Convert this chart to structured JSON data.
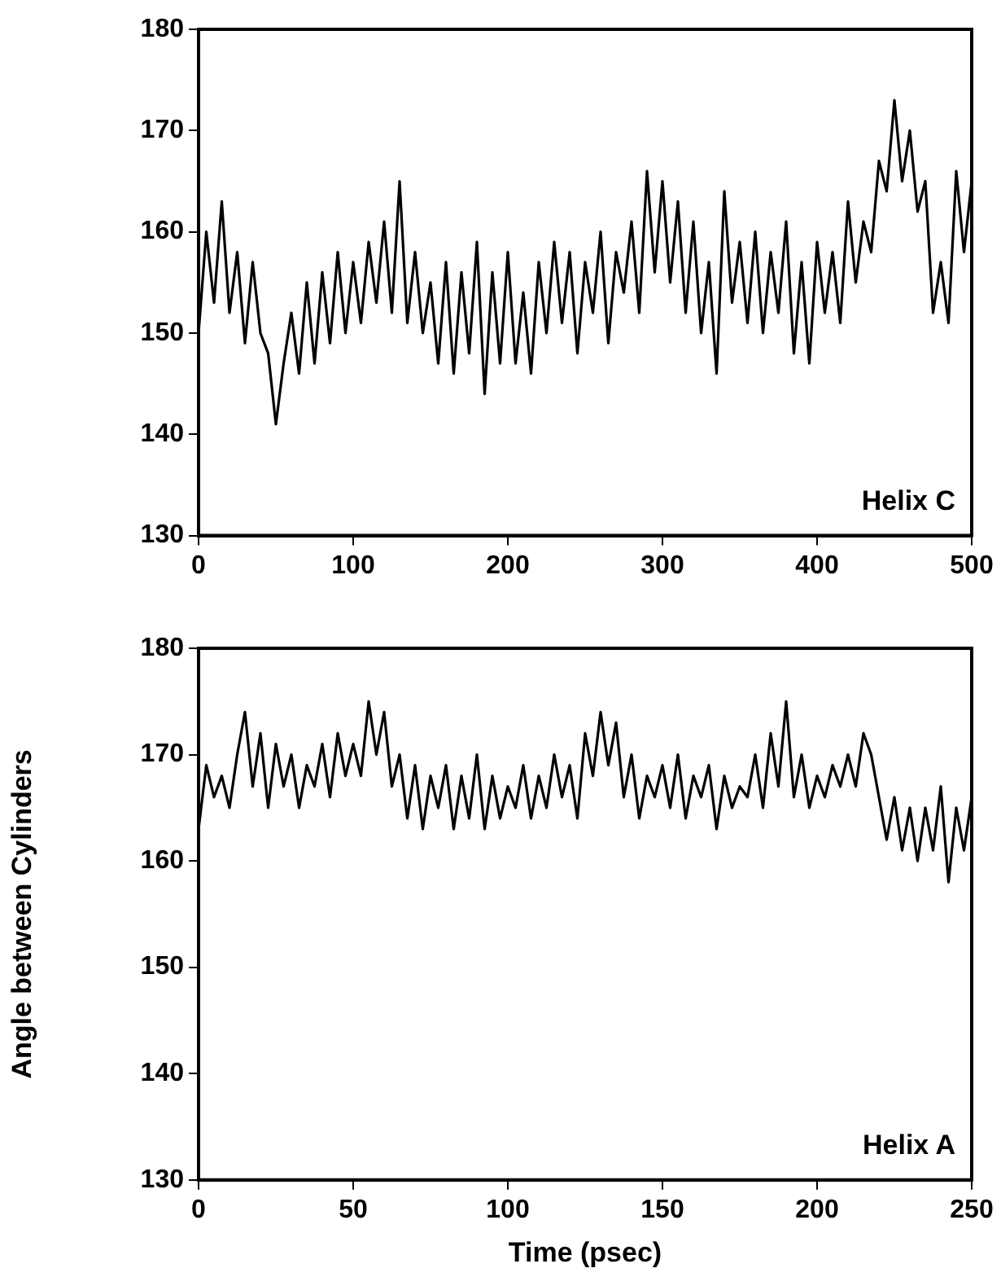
{
  "chart_data": [
    {
      "type": "line",
      "annotations": [
        "Helix C"
      ],
      "xlim": [
        0,
        500
      ],
      "xticks": [
        0,
        100,
        200,
        300,
        400,
        500
      ],
      "ylim": [
        130,
        180
      ],
      "yticks": [
        130,
        140,
        150,
        160,
        170,
        180
      ],
      "grid": false,
      "legend": false,
      "marker": "none",
      "x": [
        0,
        5,
        10,
        15,
        20,
        25,
        30,
        35,
        40,
        45,
        50,
        55,
        60,
        65,
        70,
        75,
        80,
        85,
        90,
        95,
        100,
        105,
        110,
        115,
        120,
        125,
        130,
        135,
        140,
        145,
        150,
        155,
        160,
        165,
        170,
        175,
        180,
        185,
        190,
        195,
        200,
        205,
        210,
        215,
        220,
        225,
        230,
        235,
        240,
        245,
        250,
        255,
        260,
        265,
        270,
        275,
        280,
        285,
        290,
        295,
        300,
        305,
        310,
        315,
        320,
        325,
        330,
        335,
        340,
        345,
        350,
        355,
        360,
        365,
        370,
        375,
        380,
        385,
        390,
        395,
        400,
        405,
        410,
        415,
        420,
        425,
        430,
        435,
        440,
        445,
        450,
        455,
        460,
        465,
        470,
        475,
        480,
        485,
        490,
        495,
        500
      ],
      "series": [
        {
          "color": "#000000",
          "values": [
            150,
            160,
            153,
            163,
            152,
            158,
            149,
            157,
            150,
            148,
            141,
            147,
            152,
            146,
            155,
            147,
            156,
            149,
            158,
            150,
            157,
            151,
            159,
            153,
            161,
            152,
            165,
            151,
            158,
            150,
            155,
            147,
            157,
            146,
            156,
            148,
            159,
            144,
            156,
            147,
            158,
            147,
            154,
            146,
            157,
            150,
            159,
            151,
            158,
            148,
            157,
            152,
            160,
            149,
            158,
            154,
            161,
            152,
            166,
            156,
            165,
            155,
            163,
            152,
            161,
            150,
            157,
            146,
            164,
            153,
            159,
            151,
            160,
            150,
            158,
            152,
            161,
            148,
            157,
            147,
            159,
            152,
            158,
            151,
            163,
            155,
            161,
            158,
            167,
            164,
            173,
            165,
            170,
            162,
            165,
            152,
            157,
            151,
            166,
            158,
            165
          ]
        }
      ]
    },
    {
      "type": "line",
      "xlabel": "Time (psec)",
      "ylabel": "Angle between Cylinders",
      "annotations": [
        "Helix A"
      ],
      "xlim": [
        0,
        250
      ],
      "xticks": [
        0,
        50,
        100,
        150,
        200,
        250
      ],
      "ylim": [
        130,
        180
      ],
      "yticks": [
        130,
        140,
        150,
        160,
        170,
        180
      ],
      "grid": false,
      "legend": false,
      "marker": "none",
      "x": [
        0,
        2.5,
        5,
        7.5,
        10,
        12.5,
        15,
        17.5,
        20,
        22.5,
        25,
        27.5,
        30,
        32.5,
        35,
        37.5,
        40,
        42.5,
        45,
        47.5,
        50,
        52.5,
        55,
        57.5,
        60,
        62.5,
        65,
        67.5,
        70,
        72.5,
        75,
        77.5,
        80,
        82.5,
        85,
        87.5,
        90,
        92.5,
        95,
        97.5,
        100,
        102.5,
        105,
        107.5,
        110,
        112.5,
        115,
        117.5,
        120,
        122.5,
        125,
        127.5,
        130,
        132.5,
        135,
        137.5,
        140,
        142.5,
        145,
        147.5,
        150,
        152.5,
        155,
        157.5,
        160,
        162.5,
        165,
        167.5,
        170,
        172.5,
        175,
        177.5,
        180,
        182.5,
        185,
        187.5,
        190,
        192.5,
        195,
        197.5,
        200,
        202.5,
        205,
        207.5,
        210,
        212.5,
        215,
        217.5,
        220,
        222.5,
        225,
        227.5,
        230,
        232.5,
        235,
        237.5,
        240,
        242.5,
        245,
        247.5,
        250
      ],
      "series": [
        {
          "color": "#000000",
          "values": [
            163,
            169,
            166,
            168,
            165,
            170,
            174,
            167,
            172,
            165,
            171,
            167,
            170,
            165,
            169,
            167,
            171,
            166,
            172,
            168,
            171,
            168,
            175,
            170,
            174,
            167,
            170,
            164,
            169,
            163,
            168,
            165,
            169,
            163,
            168,
            164,
            170,
            163,
            168,
            164,
            167,
            165,
            169,
            164,
            168,
            165,
            170,
            166,
            169,
            164,
            172,
            168,
            174,
            169,
            173,
            166,
            170,
            164,
            168,
            166,
            169,
            165,
            170,
            164,
            168,
            166,
            169,
            163,
            168,
            165,
            167,
            166,
            170,
            165,
            172,
            167,
            175,
            166,
            170,
            165,
            168,
            166,
            169,
            167,
            170,
            167,
            172,
            170,
            166,
            162,
            166,
            161,
            165,
            160,
            165,
            161,
            167,
            158,
            165,
            161,
            166
          ]
        }
      ]
    }
  ]
}
